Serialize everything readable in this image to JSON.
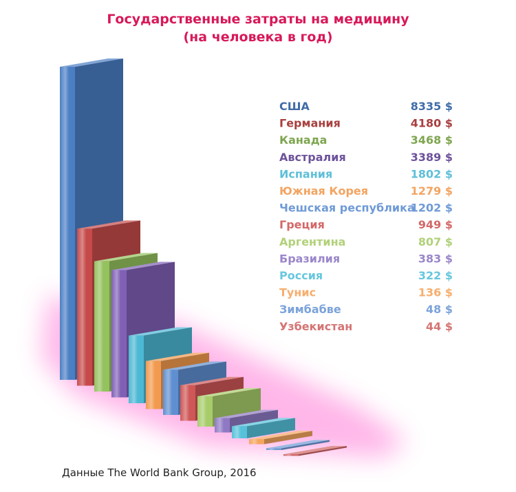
{
  "title_line1": "Государственные затраты на медицину",
  "title_line2": "(на человека в год)",
  "source": "Данные The World Bank Group, 2016",
  "currency": "$",
  "chart_data": {
    "type": "bar",
    "title": "Государственные затраты на медицину (на человека в год)",
    "xlabel": "",
    "ylabel": "",
    "ylim": [
      0,
      8335
    ],
    "grid": false,
    "legend_placement": "top-right",
    "unit": "$",
    "categories": [
      "США",
      "Германия",
      "Канада",
      "Австралия",
      "Испания",
      "Южная Корея",
      "Чешская республика",
      "Греция",
      "Аргентина",
      "Бразилия",
      "Россия",
      "Тунис",
      "Зимбабве",
      "Узбекистан"
    ],
    "values": [
      8335,
      4180,
      3468,
      3389,
      1802,
      1279,
      1202,
      949,
      807,
      383,
      322,
      136,
      48,
      44
    ],
    "colors": [
      "#4b7fc4",
      "#c64a4a",
      "#94c25e",
      "#8060b6",
      "#4cb8d4",
      "#f29a4f",
      "#5f8fd1",
      "#cf5757",
      "#a8cc6a",
      "#8f79c4",
      "#56c1da",
      "#f5a55e",
      "#6d99d6",
      "#d06464"
    ]
  }
}
